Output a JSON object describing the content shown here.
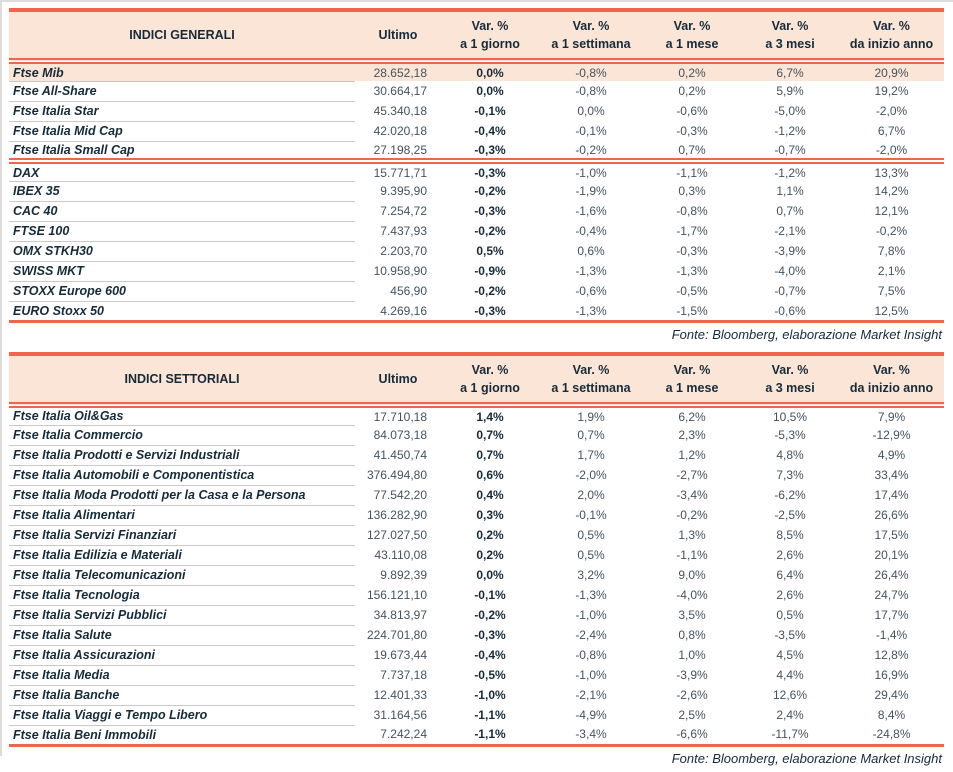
{
  "colors": {
    "accent": "#f0654e",
    "header_background": "#fbe5d6",
    "highlight_row_background": "#fbe5d6",
    "dark_text": "#162b3a",
    "number_text": "#44525e"
  },
  "columns": {
    "ultimo": "Ultimo",
    "var_pct": "Var. %",
    "periods": [
      "a 1 giorno",
      "a 1 settimana",
      "a 1 mese",
      "a 3 mesi",
      "da inizio anno"
    ]
  },
  "general": {
    "title": "INDICI GENERALI",
    "source": "Fonte: Bloomberg, elaborazione Market Insight",
    "sections": [
      [
        {
          "name": "Ftse Mib",
          "highlight": true,
          "values": [
            "28.652,18",
            "0,0%",
            "-0,8%",
            "0,2%",
            "6,7%",
            "20,9%"
          ]
        },
        {
          "name": "Ftse All-Share",
          "values": [
            "30.664,17",
            "0,0%",
            "-0,8%",
            "0,2%",
            "5,9%",
            "19,2%"
          ]
        },
        {
          "name": "Ftse Italia Star",
          "values": [
            "45.340,18",
            "-0,1%",
            "0,0%",
            "-0,6%",
            "-5,0%",
            "-2,0%"
          ]
        },
        {
          "name": "Ftse Italia Mid Cap",
          "values": [
            "42.020,18",
            "-0,4%",
            "-0,1%",
            "-0,3%",
            "-1,2%",
            "6,7%"
          ]
        },
        {
          "name": "Ftse Italia Small Cap",
          "values": [
            "27.198,25",
            "-0,3%",
            "-0,2%",
            "0,7%",
            "-0,7%",
            "-2,0%"
          ]
        }
      ],
      [
        {
          "name": "DAX",
          "values": [
            "15.771,71",
            "-0,3%",
            "-1,0%",
            "-1,1%",
            "-1,2%",
            "13,3%"
          ]
        },
        {
          "name": "IBEX 35",
          "values": [
            "9.395,90",
            "-0,2%",
            "-1,9%",
            "0,3%",
            "1,1%",
            "14,2%"
          ]
        },
        {
          "name": "CAC 40",
          "values": [
            "7.254,72",
            "-0,3%",
            "-1,6%",
            "-0,8%",
            "0,7%",
            "12,1%"
          ]
        },
        {
          "name": "FTSE 100",
          "values": [
            "7.437,93",
            "-0,2%",
            "-0,4%",
            "-1,7%",
            "-2,1%",
            "-0,2%"
          ]
        },
        {
          "name": "OMX STKH30",
          "values": [
            "2.203,70",
            "0,5%",
            "0,6%",
            "-0,3%",
            "-3,9%",
            "7,8%"
          ]
        },
        {
          "name": "SWISS MKT",
          "values": [
            "10.958,90",
            "-0,9%",
            "-1,3%",
            "-1,3%",
            "-4,0%",
            "2,1%"
          ]
        },
        {
          "name": "STOXX Europe 600",
          "values": [
            "456,90",
            "-0,2%",
            "-0,6%",
            "-0,5%",
            "-0,7%",
            "7,5%"
          ]
        },
        {
          "name": "EURO Stoxx 50",
          "values": [
            "4.269,16",
            "-0,3%",
            "-1,3%",
            "-1,5%",
            "-0,6%",
            "12,5%"
          ]
        }
      ]
    ]
  },
  "sector": {
    "title": "INDICI SETTORIALI",
    "source": "Fonte: Bloomberg, elaborazione Market Insight",
    "sections": [
      [
        {
          "name": "Ftse Italia Oil&Gas",
          "values": [
            "17.710,18",
            "1,4%",
            "1,9%",
            "6,2%",
            "10,5%",
            "7,9%"
          ]
        },
        {
          "name": "Ftse Italia Commercio",
          "values": [
            "84.073,18",
            "0,7%",
            "0,7%",
            "2,3%",
            "-5,3%",
            "-12,9%"
          ]
        },
        {
          "name": "Ftse Italia Prodotti e Servizi Industriali",
          "values": [
            "41.450,74",
            "0,7%",
            "1,7%",
            "1,2%",
            "4,8%",
            "4,9%"
          ]
        },
        {
          "name": "Ftse Italia Automobili e Componentistica",
          "values": [
            "376.494,80",
            "0,6%",
            "-2,0%",
            "-2,7%",
            "7,3%",
            "33,4%"
          ]
        },
        {
          "name": "Ftse Italia Moda Prodotti per la Casa e la Persona",
          "values": [
            "77.542,20",
            "0,4%",
            "2,0%",
            "-3,4%",
            "-6,2%",
            "17,4%"
          ]
        },
        {
          "name": "Ftse Italia Alimentari",
          "values": [
            "136.282,90",
            "0,3%",
            "-0,1%",
            "-0,2%",
            "-2,5%",
            "26,6%"
          ]
        },
        {
          "name": "Ftse Italia Servizi Finanziari",
          "values": [
            "127.027,50",
            "0,2%",
            "0,5%",
            "1,3%",
            "8,5%",
            "17,5%"
          ]
        },
        {
          "name": "Ftse Italia Edilizia e Materiali",
          "values": [
            "43.110,08",
            "0,2%",
            "0,5%",
            "-1,1%",
            "2,6%",
            "20,1%"
          ]
        },
        {
          "name": "Ftse Italia Telecomunicazioni",
          "values": [
            "9.892,39",
            "0,0%",
            "3,2%",
            "9,0%",
            "6,4%",
            "26,4%"
          ]
        },
        {
          "name": "Ftse Italia Tecnologia",
          "values": [
            "156.121,10",
            "-0,1%",
            "-1,3%",
            "-4,0%",
            "2,6%",
            "24,7%"
          ]
        },
        {
          "name": "Ftse Italia Servizi Pubblici",
          "values": [
            "34.813,97",
            "-0,2%",
            "-1,0%",
            "3,5%",
            "0,5%",
            "17,7%"
          ]
        },
        {
          "name": "Ftse Italia Salute",
          "values": [
            "224.701,80",
            "-0,3%",
            "-2,4%",
            "0,8%",
            "-3,5%",
            "-1,4%"
          ]
        },
        {
          "name": "Ftse Italia Assicurazioni",
          "values": [
            "19.673,44",
            "-0,4%",
            "-0,8%",
            "1,0%",
            "4,5%",
            "12,8%"
          ]
        },
        {
          "name": "Ftse Italia Media",
          "values": [
            "7.737,18",
            "-0,5%",
            "-1,0%",
            "-3,9%",
            "4,4%",
            "16,9%"
          ]
        },
        {
          "name": "Ftse Italia Banche",
          "values": [
            "12.401,33",
            "-1,0%",
            "-2,1%",
            "-2,6%",
            "12,6%",
            "29,4%"
          ]
        },
        {
          "name": "Ftse Italia Viaggi e Tempo Libero",
          "values": [
            "31.164,56",
            "-1,1%",
            "-4,9%",
            "2,5%",
            "2,4%",
            "8,4%"
          ]
        },
        {
          "name": "Ftse Italia Beni Immobili",
          "values": [
            "7.242,24",
            "-1,1%",
            "-3,4%",
            "-6,6%",
            "-11,7%",
            "-24,8%"
          ]
        }
      ]
    ]
  }
}
